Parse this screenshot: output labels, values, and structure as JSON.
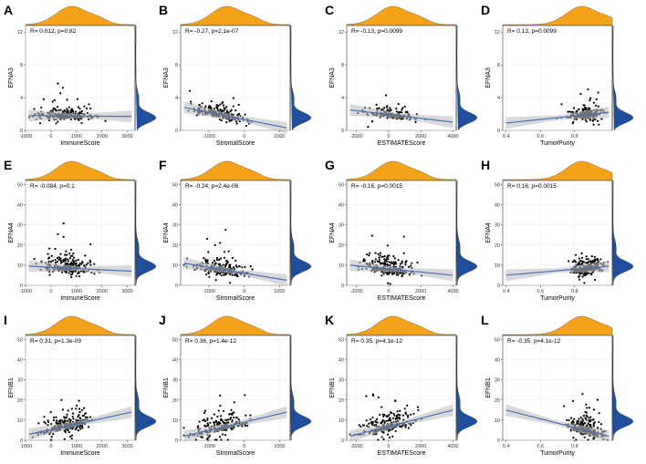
{
  "colors": {
    "top_density": "#F5A21B",
    "side_density": "#1F4E9C",
    "points": "#000000",
    "fit": "#4A6FB5",
    "band": "#BFBFBF",
    "grid": "#EBEBEB"
  },
  "chart_data": [
    {
      "letter": "A",
      "type": "scatter",
      "title": "",
      "xlabel": "ImmuneScore",
      "ylabel": "EFNA3",
      "stat": "R= 0.012, p=0.82",
      "xlim": [
        -1000,
        3300
      ],
      "ylim": [
        0,
        12.8
      ],
      "xticks": [
        -1000,
        0,
        1000,
        2000,
        3000
      ],
      "xtick_labels": [
        "-1000",
        "0",
        "1000",
        "2000",
        "3000"
      ],
      "yticks": [
        0,
        4,
        8,
        12
      ],
      "ytick_labels": [
        "0",
        "4",
        "8",
        "12"
      ],
      "fit": [
        1.8,
        1.7
      ],
      "xdist": "center",
      "ydist": "low",
      "seed": 11
    },
    {
      "letter": "B",
      "type": "scatter",
      "title": "",
      "xlabel": "StromalScore",
      "ylabel": "EFNA3",
      "stat": "R= -0.27, p=2.1e-07",
      "xlim": [
        -1800,
        1300
      ],
      "ylim": [
        0,
        12.8
      ],
      "xticks": [
        -1000,
        0,
        1000
      ],
      "xtick_labels": [
        "-1000",
        "0",
        "1000"
      ],
      "yticks": [
        0,
        4,
        8,
        12
      ],
      "ytick_labels": [
        "0",
        "4",
        "8",
        "12"
      ],
      "fit": [
        2.8,
        0.3
      ],
      "xdist": "center",
      "ydist": "low",
      "seed": 23
    },
    {
      "letter": "C",
      "type": "scatter",
      "title": "",
      "xlabel": "ESTIMATEScore",
      "ylabel": "EFNA3",
      "stat": "R= -0.13, p=0.0099",
      "xlim": [
        -2600,
        4200
      ],
      "ylim": [
        0,
        12.8
      ],
      "xticks": [
        -2000,
        0,
        2000,
        4000
      ],
      "xtick_labels": [
        "-2000",
        "0",
        "2000",
        "4000"
      ],
      "yticks": [
        0,
        4,
        8,
        12
      ],
      "ytick_labels": [
        "0",
        "4",
        "8",
        "12"
      ],
      "fit": [
        2.5,
        1.0
      ],
      "xdist": "center",
      "ydist": "low",
      "seed": 37
    },
    {
      "letter": "D",
      "type": "scatter",
      "title": "",
      "xlabel": "TumorPurity",
      "ylabel": "EFNA3",
      "stat": "R= 0.13, p=0.0099",
      "xlim": [
        0.38,
        1.02
      ],
      "ylim": [
        0,
        12.8
      ],
      "xticks": [
        0.4,
        0.6,
        0.8
      ],
      "xtick_labels": [
        "0.4",
        "0.6",
        "0.8"
      ],
      "yticks": [
        0,
        4,
        8,
        12
      ],
      "ytick_labels": [
        "0",
        "4",
        "8",
        "12"
      ],
      "fit": [
        0.9,
        2.2
      ],
      "xdist": "right",
      "ydist": "low",
      "seed": 41
    },
    {
      "letter": "E",
      "type": "scatter",
      "title": "",
      "xlabel": "ImmuneScore",
      "ylabel": "EFNA4",
      "stat": "R= -0.084, p=0.1",
      "xlim": [
        -1000,
        3300
      ],
      "ylim": [
        0,
        52
      ],
      "xticks": [
        -1000,
        0,
        1000,
        2000,
        3000
      ],
      "xtick_labels": [
        "-1000",
        "0",
        "1000",
        "2000",
        "3000"
      ],
      "yticks": [
        0,
        10,
        20,
        30,
        40,
        50
      ],
      "ytick_labels": [
        "0",
        "10",
        "20",
        "30",
        "40",
        "50"
      ],
      "fit": [
        9.5,
        7.0
      ],
      "xdist": "center",
      "ydist": "mid",
      "seed": 53
    },
    {
      "letter": "F",
      "type": "scatter",
      "title": "",
      "xlabel": "StromalScore",
      "ylabel": "EFNA4",
      "stat": "R= -0.24, p=2.4e-06",
      "xlim": [
        -1800,
        1300
      ],
      "ylim": [
        0,
        52
      ],
      "xticks": [
        -1000,
        0,
        1000
      ],
      "xtick_labels": [
        "-1000",
        "0",
        "1000"
      ],
      "yticks": [
        0,
        10,
        20,
        30,
        40,
        50
      ],
      "ytick_labels": [
        "0",
        "10",
        "20",
        "30",
        "40",
        "50"
      ],
      "fit": [
        11.0,
        2.5
      ],
      "xdist": "center",
      "ydist": "mid",
      "seed": 67
    },
    {
      "letter": "G",
      "type": "scatter",
      "title": "",
      "xlabel": "ESTIMATEScore",
      "ylabel": "EFNA4",
      "stat": "R= -0.16, p=0.0015",
      "xlim": [
        -2600,
        4200
      ],
      "ylim": [
        0,
        52
      ],
      "xticks": [
        -2000,
        0,
        2000,
        4000
      ],
      "xtick_labels": [
        "-2000",
        "0",
        "2000",
        "4000"
      ],
      "yticks": [
        0,
        10,
        20,
        30,
        40,
        50
      ],
      "ytick_labels": [
        "0",
        "10",
        "20",
        "30",
        "40",
        "50"
      ],
      "fit": [
        10.0,
        5.0
      ],
      "xdist": "center",
      "ydist": "mid",
      "seed": 71
    },
    {
      "letter": "H",
      "type": "scatter",
      "title": "",
      "xlabel": "TumorPurity",
      "ylabel": "EFNA4",
      "stat": "R= 0.16, p=0.0015",
      "xlim": [
        0.38,
        1.02
      ],
      "ylim": [
        0,
        52
      ],
      "xticks": [
        0.4,
        0.6,
        0.8
      ],
      "xtick_labels": [
        "0.4",
        "0.6",
        "0.8"
      ],
      "yticks": [
        0,
        10,
        20,
        30,
        40,
        50
      ],
      "ytick_labels": [
        "0",
        "10",
        "20",
        "30",
        "40",
        "50"
      ],
      "fit": [
        5.0,
        9.5
      ],
      "xdist": "right",
      "ydist": "mid",
      "seed": 83
    },
    {
      "letter": "I",
      "type": "scatter",
      "title": "",
      "xlabel": "ImmuneScore",
      "ylabel": "EFNB1",
      "stat": "R= 0.31, p=1.3e-09",
      "xlim": [
        -1000,
        3300
      ],
      "ylim": [
        0,
        52
      ],
      "xticks": [
        -1000,
        0,
        1000,
        2000,
        3000
      ],
      "xtick_labels": [
        "-1000",
        "0",
        "1000",
        "2000",
        "3000"
      ],
      "yticks": [
        0,
        10,
        20,
        30,
        40,
        50
      ],
      "ytick_labels": [
        "0",
        "10",
        "20",
        "30",
        "40",
        "50"
      ],
      "fit": [
        3.0,
        14.0
      ],
      "xdist": "center",
      "ydist": "mid",
      "seed": 97
    },
    {
      "letter": "J",
      "type": "scatter",
      "title": "",
      "xlabel": "StromalScore",
      "ylabel": "EFNB1",
      "stat": "R= 0.36, p=1.4e-12",
      "xlim": [
        -1800,
        1300
      ],
      "ylim": [
        0,
        52
      ],
      "xticks": [
        -1000,
        0,
        1000
      ],
      "xtick_labels": [
        "-1000",
        "0",
        "1000"
      ],
      "yticks": [
        0,
        10,
        20,
        30,
        40,
        50
      ],
      "ytick_labels": [
        "0",
        "10",
        "20",
        "30",
        "40",
        "50"
      ],
      "fit": [
        2.0,
        14.0
      ],
      "xdist": "center",
      "ydist": "mid",
      "seed": 101
    },
    {
      "letter": "K",
      "type": "scatter",
      "title": "",
      "xlabel": "ESTIMATEScore",
      "ylabel": "EFNB1",
      "stat": "R= 0.35, p=4.1e-12",
      "xlim": [
        -2600,
        4200
      ],
      "ylim": [
        0,
        52
      ],
      "xticks": [
        -2000,
        0,
        2000,
        4000
      ],
      "xtick_labels": [
        "-2000",
        "0",
        "2000",
        "4000"
      ],
      "yticks": [
        0,
        10,
        20,
        30,
        40,
        50
      ],
      "ytick_labels": [
        "0",
        "10",
        "20",
        "30",
        "40",
        "50"
      ],
      "fit": [
        2.0,
        15.0
      ],
      "xdist": "center",
      "ydist": "mid",
      "seed": 113
    },
    {
      "letter": "L",
      "type": "scatter",
      "title": "",
      "xlabel": "TumorPurity",
      "ylabel": "EFNB1",
      "stat": "R= -0.35, p=4.1e-12",
      "xlim": [
        0.38,
        1.02
      ],
      "ylim": [
        0,
        52
      ],
      "xticks": [
        0.4,
        0.6,
        0.8
      ],
      "xtick_labels": [
        "0.4",
        "0.6",
        "0.8"
      ],
      "yticks": [
        0,
        10,
        20,
        30,
        40,
        50
      ],
      "ytick_labels": [
        "0",
        "10",
        "20",
        "30",
        "40",
        "50"
      ],
      "fit": [
        15.0,
        2.0
      ],
      "xdist": "right",
      "ydist": "mid",
      "seed": 127
    }
  ]
}
